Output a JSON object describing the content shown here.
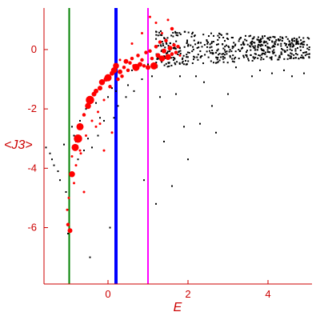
{
  "chart_data": {
    "type": "scatter",
    "title": "",
    "xlabel": "E",
    "ylabel": "<J3>",
    "xlim": [
      -1.6,
      5.1
    ],
    "ylim": [
      -7.9,
      1.4
    ],
    "x_ticks": [
      0,
      2,
      4
    ],
    "y_ticks": [
      0,
      -2,
      -4,
      -6
    ],
    "grid": false,
    "axis_color": "#cc0000",
    "vertical_lines": [
      {
        "x": -0.97,
        "color": "#008000"
      },
      {
        "x": 0.2,
        "color": "#0000ff"
      },
      {
        "x": 1.0,
        "color": "#ff00ff"
      }
    ],
    "series": [
      {
        "marker_color": "#ff0000",
        "points": [
          [
            -1.02,
            -5.4,
            2
          ],
          [
            -1.0,
            -5.9,
            3
          ],
          [
            -0.95,
            -6.1,
            4
          ],
          [
            -0.98,
            -5.0,
            2
          ],
          [
            -0.9,
            -4.2,
            5
          ],
          [
            -0.85,
            -4.5,
            2
          ],
          [
            -0.8,
            -3.9,
            2
          ],
          [
            -0.82,
            -3.3,
            6
          ],
          [
            -0.75,
            -3.0,
            7
          ],
          [
            -0.7,
            -2.6,
            6
          ],
          [
            -0.68,
            -3.5,
            2
          ],
          [
            -0.6,
            -2.2,
            3
          ],
          [
            -0.55,
            -2.9,
            2
          ],
          [
            -0.5,
            -1.9,
            5
          ],
          [
            -0.45,
            -1.7,
            7
          ],
          [
            -0.4,
            -2.4,
            2
          ],
          [
            -0.35,
            -1.5,
            4
          ],
          [
            -0.3,
            -1.4,
            4
          ],
          [
            -0.25,
            -2.1,
            2
          ],
          [
            -0.2,
            -1.3,
            4
          ],
          [
            -0.15,
            -1.1,
            5
          ],
          [
            -0.1,
            -1.7,
            2
          ],
          [
            -0.05,
            -1.0,
            4
          ],
          [
            0.0,
            -0.95,
            6
          ],
          [
            0.05,
            -1.25,
            3
          ],
          [
            0.1,
            -0.8,
            4
          ],
          [
            0.15,
            -0.7,
            5
          ],
          [
            0.2,
            -0.55,
            5
          ],
          [
            0.25,
            -1.0,
            3
          ],
          [
            0.3,
            -0.75,
            4
          ],
          [
            0.35,
            -0.9,
            3
          ],
          [
            0.4,
            -0.6,
            3
          ],
          [
            0.45,
            -0.4,
            4
          ],
          [
            0.5,
            -0.7,
            3
          ],
          [
            0.55,
            -0.45,
            3
          ],
          [
            0.6,
            -0.3,
            3
          ],
          [
            0.65,
            -0.55,
            3
          ],
          [
            0.7,
            -0.6,
            6
          ],
          [
            0.75,
            -0.2,
            3
          ],
          [
            0.8,
            -0.5,
            4
          ],
          [
            0.85,
            -0.35,
            3
          ],
          [
            0.9,
            -0.55,
            3
          ],
          [
            0.95,
            -0.1,
            3
          ],
          [
            1.0,
            -0.6,
            4
          ],
          [
            1.05,
            -0.05,
            3
          ],
          [
            1.1,
            -0.3,
            3
          ],
          [
            1.15,
            -0.55,
            6
          ],
          [
            1.2,
            0.1,
            3
          ],
          [
            1.25,
            -0.2,
            4
          ],
          [
            1.3,
            0.25,
            3
          ],
          [
            1.35,
            -0.3,
            5
          ],
          [
            1.4,
            -0.05,
            4
          ],
          [
            1.45,
            0.3,
            3
          ],
          [
            1.5,
            -0.25,
            5
          ],
          [
            1.55,
            0.05,
            4
          ],
          [
            1.6,
            -0.15,
            3
          ],
          [
            1.65,
            0.15,
            3
          ],
          [
            1.7,
            -0.1,
            3
          ],
          [
            1.75,
            0.1,
            3
          ],
          [
            1.8,
            -0.2,
            2
          ],
          [
            1.5,
            1.0,
            2
          ],
          [
            1.6,
            0.7,
            3
          ],
          [
            1.2,
            0.9,
            2
          ],
          [
            1.05,
            1.1,
            2
          ],
          [
            0.85,
            0.55,
            2
          ],
          [
            0.6,
            0.2,
            2
          ],
          [
            1.35,
            0.55,
            2
          ],
          [
            0.3,
            -0.35,
            2
          ],
          [
            -0.2,
            -2.5,
            2
          ],
          [
            -0.6,
            -4.8,
            2
          ],
          [
            -0.9,
            -3.6,
            2
          ],
          [
            -0.3,
            -2.6,
            2
          ],
          [
            -0.1,
            -3.4,
            2
          ],
          [
            0.1,
            -2.8,
            2
          ],
          [
            -0.7,
            -3.4,
            2
          ]
        ]
      },
      {
        "marker_color": "#000000",
        "points": [
          [
            -1.55,
            -3.3
          ],
          [
            -1.45,
            -3.5
          ],
          [
            -1.4,
            -3.7
          ],
          [
            -1.35,
            -3.9
          ],
          [
            -1.25,
            -4.1
          ],
          [
            -1.2,
            -4.4
          ],
          [
            -1.1,
            -3.2
          ],
          [
            -1.05,
            -4.8
          ],
          [
            -1.0,
            -6.2
          ],
          [
            -0.9,
            -2.6
          ],
          [
            -0.85,
            -2.9
          ],
          [
            -0.8,
            -3.1
          ],
          [
            -0.75,
            -3.7
          ],
          [
            -0.7,
            -2.4
          ],
          [
            -0.6,
            -3.4
          ],
          [
            -0.55,
            -2.0
          ],
          [
            -0.5,
            -3.0
          ],
          [
            -0.4,
            -3.3
          ],
          [
            -0.45,
            -7.0
          ],
          [
            -0.3,
            -1.8
          ],
          [
            -0.25,
            -2.9
          ],
          [
            -0.2,
            -2.3
          ],
          [
            -0.1,
            -2.4
          ],
          [
            0.0,
            -1.6
          ],
          [
            0.05,
            -6.0
          ],
          [
            0.1,
            -1.3
          ],
          [
            0.15,
            -2.3
          ],
          [
            0.2,
            -1.4
          ],
          [
            0.25,
            -1.9
          ],
          [
            0.35,
            -0.9
          ],
          [
            0.45,
            -1.6
          ],
          [
            0.5,
            -1.2
          ],
          [
            0.6,
            -0.7
          ],
          [
            0.65,
            -1.4
          ],
          [
            0.75,
            -0.6
          ],
          [
            0.85,
            -1.0
          ],
          [
            0.9,
            -4.4
          ],
          [
            1.0,
            -0.5
          ],
          [
            1.1,
            -0.9
          ],
          [
            1.2,
            -5.2
          ],
          [
            1.3,
            -1.6
          ],
          [
            1.4,
            -3.1
          ],
          [
            1.6,
            -4.6
          ],
          [
            1.7,
            -1.5
          ],
          [
            1.8,
            -0.9
          ],
          [
            1.9,
            -2.6
          ],
          [
            2.0,
            -3.7
          ],
          [
            2.2,
            -0.9
          ],
          [
            2.3,
            -2.5
          ],
          [
            2.4,
            -1.1
          ],
          [
            2.6,
            -1.9
          ],
          [
            2.7,
            -2.8
          ],
          [
            3.0,
            -1.5
          ],
          [
            3.2,
            -0.6
          ],
          [
            3.6,
            -0.9
          ],
          [
            3.8,
            -0.7
          ],
          [
            4.1,
            -0.8
          ],
          [
            4.4,
            -0.7
          ],
          [
            4.6,
            -0.9
          ],
          [
            4.9,
            -0.8
          ]
        ]
      }
    ]
  }
}
